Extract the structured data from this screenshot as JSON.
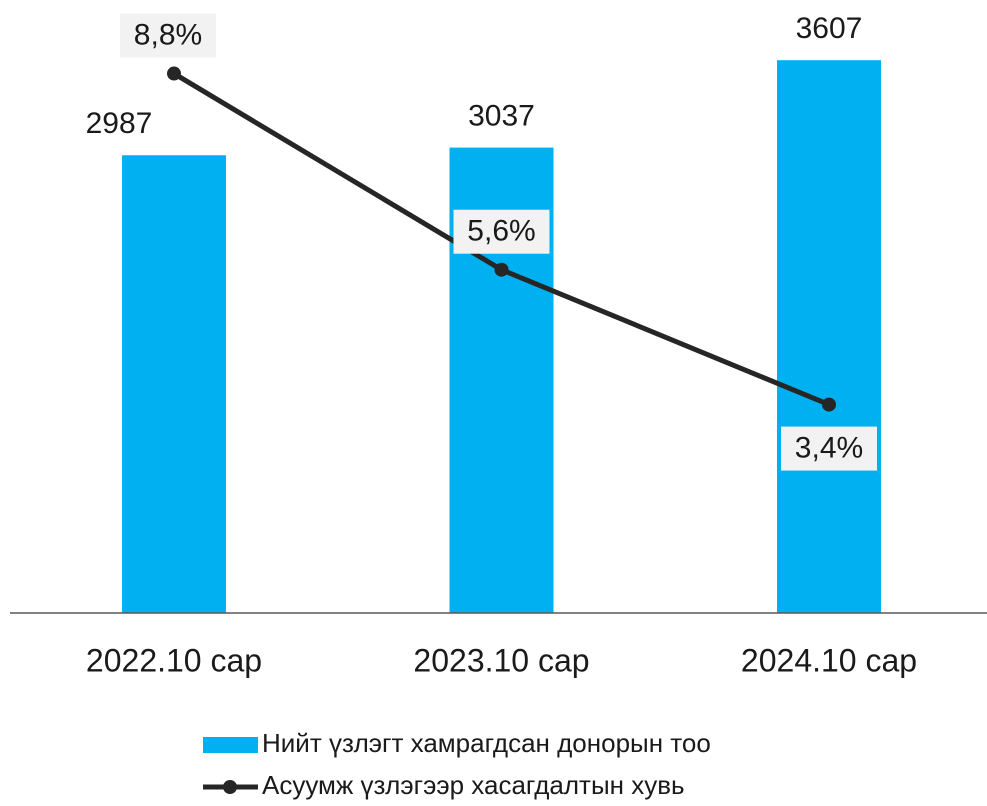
{
  "chart_data": {
    "type": "bar_line",
    "categories": [
      "2022.10 сар",
      "2023.10 сар",
      "2024.10 сар"
    ],
    "series": [
      {
        "name": "Нийт үзлэгт хамрагдсан донорын тоо",
        "type": "bar",
        "color": "#00b0f0",
        "values": [
          2987,
          3037,
          3607
        ]
      },
      {
        "name": "Асуумж үзлэгээр хасагдалтын хувь",
        "type": "line",
        "axis": "y2",
        "color": "#262626",
        "values": [
          8.8,
          5.6,
          3.4
        ],
        "value_labels": [
          "8,8%",
          "5,6%",
          "3,4%"
        ]
      }
    ],
    "ylim": [
      0,
      4000
    ],
    "y2lim": [
      0,
      10
    ]
  }
}
